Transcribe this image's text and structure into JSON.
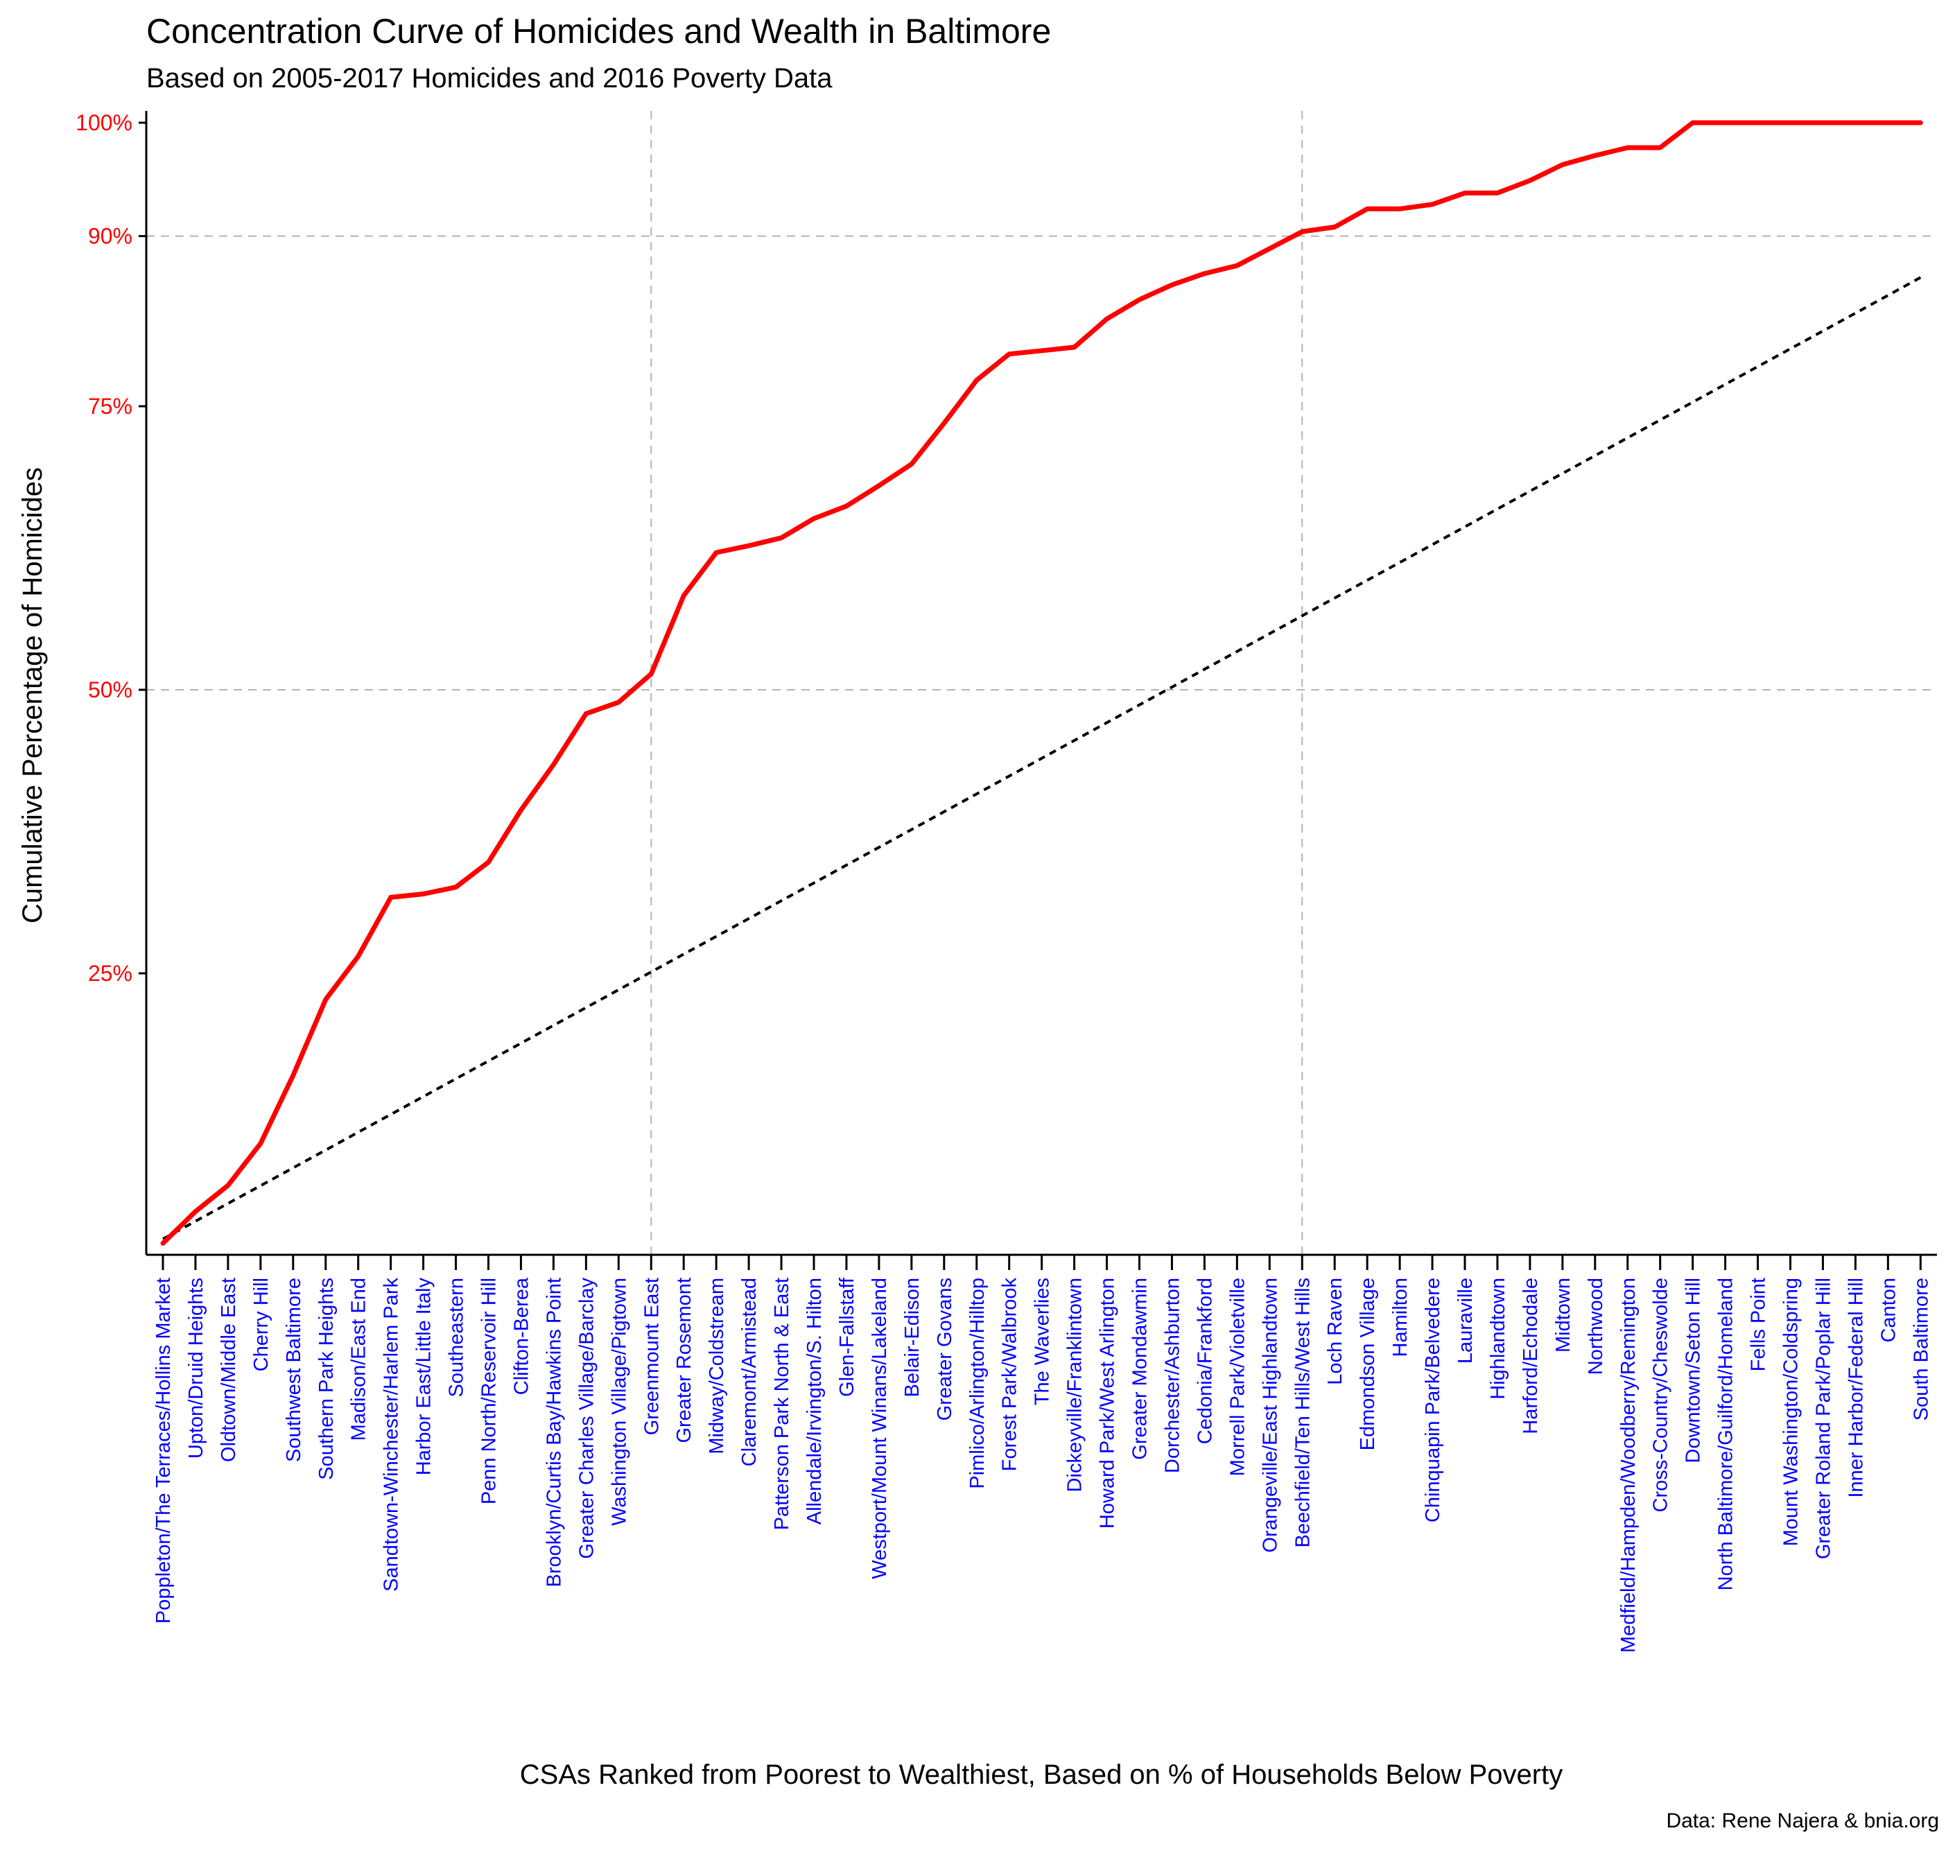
{
  "chart_data": {
    "type": "line",
    "title": "Concentration Curve of Homicides and Wealth in Baltimore",
    "subtitle": "Based on 2005-2017 Homicides and 2016 Poverty Data",
    "xlabel": "CSAs Ranked from Poorest to Wealthiest, Based on % of Households Below Poverty",
    "ylabel": "Cumulative Percentage of Homicides",
    "caption": "Data: Rene Najera & bnia.org",
    "ylim": [
      0.0,
      1.0
    ],
    "yticks": [
      0.25,
      0.5,
      0.75,
      0.9,
      1.0
    ],
    "ytick_labels": [
      "25%",
      "50%",
      "75%",
      "90%",
      "100%"
    ],
    "h_gridlines": [
      0.5,
      0.9
    ],
    "v_gridline_categories": [
      "Greenmount East",
      "Beechfield/Ten Hills/West Hills"
    ],
    "colors": {
      "curve": "#ff0000",
      "equality": "#000000",
      "ytick_text": "#ff0000",
      "xtick_text": "#0000ff",
      "grid": "#b3b3b3"
    },
    "categories": [
      "Poppleton/The Terraces/Hollins Market",
      "Upton/Druid Heights",
      "Oldtown/Middle East",
      "Cherry Hill",
      "Southwest Baltimore",
      "Southern Park Heights",
      "Madison/East End",
      "Sandtown-Winchester/Harlem Park",
      "Harbor East/Little Italy",
      "Southeastern",
      "Penn North/Reservoir Hill",
      "Clifton-Berea",
      "Brooklyn/Curtis Bay/Hawkins Point",
      "Greater Charles Village/Barclay",
      "Washington Village/Pigtown",
      "Greenmount East",
      "Greater Rosemont",
      "Midway/Coldstream",
      "Claremont/Armistead",
      "Patterson Park North & East",
      "Allendale/Irvington/S. Hilton",
      "Glen-Fallstaff",
      "Westport/Mount Winans/Lakeland",
      "Belair-Edison",
      "Greater Govans",
      "Pimlico/Arlington/Hilltop",
      "Forest Park/Walbrook",
      "The Waverlies",
      "Dickeyville/Franklintown",
      "Howard Park/West Arlington",
      "Greater Mondawmin",
      "Dorchester/Ashburton",
      "Cedonia/Frankford",
      "Morrell Park/Violetville",
      "Orangeville/East Highlandtown",
      "Beechfield/Ten Hills/West Hills",
      "Loch Raven",
      "Edmondson Village",
      "Hamilton",
      "Chinquapin Park/Belvedere",
      "Lauraville",
      "Highlandtown",
      "Harford/Echodale",
      "Midtown",
      "Northwood",
      "Medfield/Hampden/Woodberry/Remington",
      "Cross-Country/Cheswolde",
      "Downtown/Seton Hill",
      "North Baltimore/Guilford/Homeland",
      "Fells Point",
      "Mount Washington/Coldspring",
      "Greater Roland Park/Poplar Hill",
      "Inner Harbor/Federal Hill",
      "Canton",
      "South Baltimore"
    ],
    "series": [
      {
        "values": [
          0.012,
          0.04,
          0.063,
          0.1,
          0.16,
          0.227,
          0.265,
          0.317,
          0.32,
          0.326,
          0.348,
          0.394,
          0.434,
          0.479,
          0.489,
          0.514,
          0.583,
          0.621,
          0.627,
          0.634,
          0.651,
          0.662,
          0.68,
          0.699,
          0.735,
          0.773,
          0.796,
          0.799,
          0.802,
          0.827,
          0.844,
          0.857,
          0.867,
          0.874,
          0.889,
          0.904,
          0.908,
          0.924,
          0.924,
          0.928,
          0.938,
          0.938,
          0.949,
          0.963,
          0.971,
          0.978,
          0.978,
          1.0,
          1.0,
          1.0,
          1.0,
          1.0,
          1.0,
          1.0,
          1.0
        ]
      },
      {
        "values": [
          0.0157,
          0.0314,
          0.0471,
          0.0628,
          0.0785,
          0.0942,
          0.1099,
          0.1256,
          0.1413,
          0.157,
          0.1727,
          0.1884,
          0.2041,
          0.2198,
          0.2355,
          0.2512,
          0.2669,
          0.2826,
          0.2983,
          0.314,
          0.3297,
          0.3454,
          0.3611,
          0.3768,
          0.3925,
          0.4082,
          0.4239,
          0.4396,
          0.4553,
          0.471,
          0.4867,
          0.5024,
          0.5181,
          0.5338,
          0.5495,
          0.5652,
          0.5809,
          0.5966,
          0.6123,
          0.628,
          0.6437,
          0.6594,
          0.6751,
          0.6908,
          0.7065,
          0.7222,
          0.7379,
          0.7536,
          0.7693,
          0.785,
          0.8007,
          0.8164,
          0.8321,
          0.8478,
          0.8635
        ]
      }
    ]
  }
}
